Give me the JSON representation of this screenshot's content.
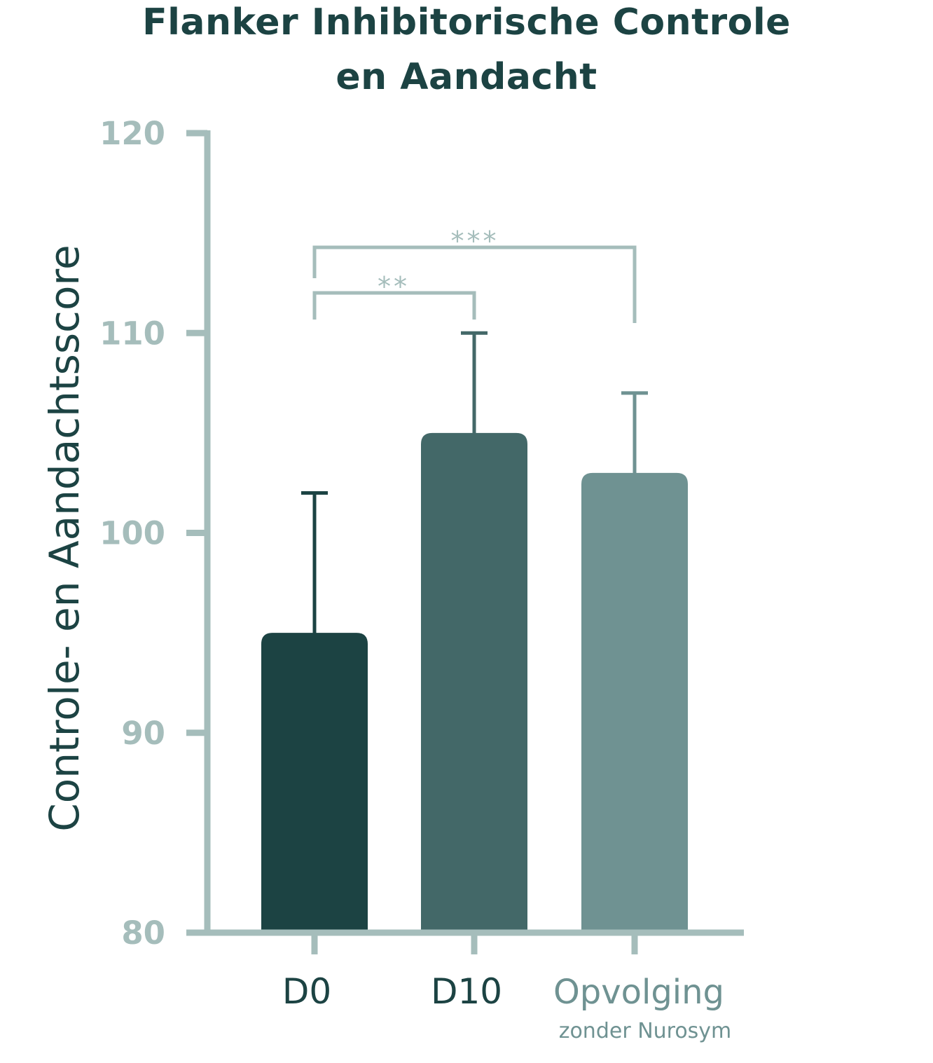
{
  "chart_data": {
    "type": "bar",
    "title_lines": [
      "Flanker Inhibitorische Controle",
      "en Aandacht"
    ],
    "ylabel": "Controle- en Aandachtsscore",
    "ylim": [
      80,
      120
    ],
    "yticks": [
      "80",
      "90",
      "100",
      "110",
      "120"
    ],
    "categories": [
      {
        "label": "D0",
        "sublabel": ""
      },
      {
        "label": "D10",
        "sublabel": ""
      },
      {
        "label": "Opvolging",
        "sublabel": "zonder Nurosym"
      }
    ],
    "values": [
      95,
      105,
      103
    ],
    "error_upper": [
      102,
      110,
      107
    ],
    "colors": [
      "#1c4343",
      "#436868",
      "#6f9292"
    ],
    "significance": [
      {
        "from": 0,
        "to": 1,
        "label": "**"
      },
      {
        "from": 0,
        "to": 2,
        "label": "***"
      }
    ],
    "axis_color": "#a5bdbb",
    "tick_label_color": "#a5bdbb",
    "text_color": "#1c4343",
    "sublabel_color": "#6f9292"
  }
}
